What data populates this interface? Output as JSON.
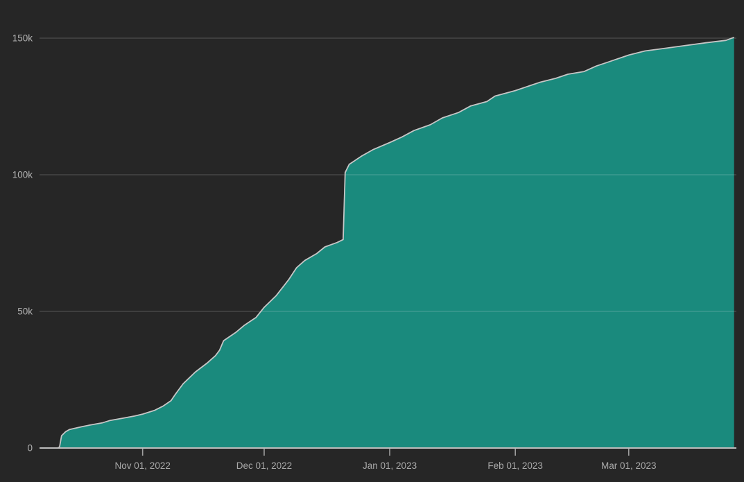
{
  "chart": {
    "background_color": "#262626",
    "area_fill_color": "#1a8a7d",
    "line_stroke_color": "#c6c6c6",
    "grid_color": "rgba(255,255,255,0.15)",
    "baseline_color": "#bdbdbd",
    "tick_mark_color": "#a0a0a0",
    "y_label_color": "#b3b3b3",
    "x_label_color": "#a9a9a9"
  },
  "chart_data": {
    "type": "area",
    "title": "",
    "xlabel": "",
    "ylabel": "",
    "grid": "horizontal-only",
    "legend": "none",
    "ylim": [
      0,
      150
    ],
    "y_unit": "thousands",
    "y_ticks": [
      {
        "value": 0,
        "label": "0"
      },
      {
        "value": 50,
        "label": "50k"
      },
      {
        "value": 100,
        "label": "100k"
      },
      {
        "value": 150,
        "label": "150k"
      }
    ],
    "x_unit": "days from first plotted point",
    "x_domain": [
      0,
      167.4
    ],
    "x_ticks": [
      {
        "day": 21,
        "label": "Nov 01, 2022"
      },
      {
        "day": 51,
        "label": "Dec 01, 2022"
      },
      {
        "day": 82,
        "label": "Jan 01, 2023"
      },
      {
        "day": 113,
        "label": "Feb 01, 2023"
      },
      {
        "day": 141,
        "label": "Mar 01, 2023"
      }
    ],
    "points_note": "cumulative series, values in thousands; vertical jump ~76k to ~101k around day 71 (late Dec 2022)",
    "points": [
      [
        0,
        0
      ],
      [
        0.5,
        0.4
      ],
      [
        1,
        4.5
      ],
      [
        2,
        6
      ],
      [
        3,
        6.8
      ],
      [
        6,
        7.8
      ],
      [
        8,
        8.4
      ],
      [
        11,
        9.2
      ],
      [
        13,
        10.1
      ],
      [
        16,
        10.9
      ],
      [
        19,
        11.7
      ],
      [
        21,
        12.4
      ],
      [
        24,
        13.8
      ],
      [
        26,
        15.3
      ],
      [
        28,
        17.3
      ],
      [
        29,
        19.5
      ],
      [
        31,
        23.5
      ],
      [
        34,
        27.8
      ],
      [
        37,
        31.2
      ],
      [
        39,
        33.8
      ],
      [
        40,
        35.8
      ],
      [
        41,
        39.3
      ],
      [
        44,
        42.3
      ],
      [
        46,
        44.8
      ],
      [
        48,
        46.8
      ],
      [
        49,
        47.8
      ],
      [
        51,
        51.5
      ],
      [
        54,
        55.8
      ],
      [
        57,
        61.5
      ],
      [
        59,
        66
      ],
      [
        61,
        68.6
      ],
      [
        64,
        71.2
      ],
      [
        66,
        73.6
      ],
      [
        69,
        75.2
      ],
      [
        70.5,
        76.3
      ],
      [
        71,
        100.8
      ],
      [
        72,
        103.8
      ],
      [
        75,
        106.8
      ],
      [
        78,
        109.3
      ],
      [
        82,
        111.8
      ],
      [
        85,
        113.8
      ],
      [
        88,
        116.2
      ],
      [
        92,
        118.3
      ],
      [
        95,
        120.8
      ],
      [
        99,
        122.8
      ],
      [
        102,
        125.2
      ],
      [
        106,
        126.8
      ],
      [
        108,
        128.8
      ],
      [
        113,
        130.8
      ],
      [
        116,
        132.3
      ],
      [
        119,
        133.8
      ],
      [
        123,
        135.3
      ],
      [
        126,
        136.8
      ],
      [
        130,
        137.8
      ],
      [
        133,
        139.8
      ],
      [
        136,
        141.3
      ],
      [
        141,
        143.8
      ],
      [
        145,
        145.3
      ],
      [
        150,
        146.3
      ],
      [
        155,
        147.3
      ],
      [
        160,
        148.3
      ],
      [
        165,
        149.2
      ],
      [
        167,
        150.3
      ]
    ]
  }
}
